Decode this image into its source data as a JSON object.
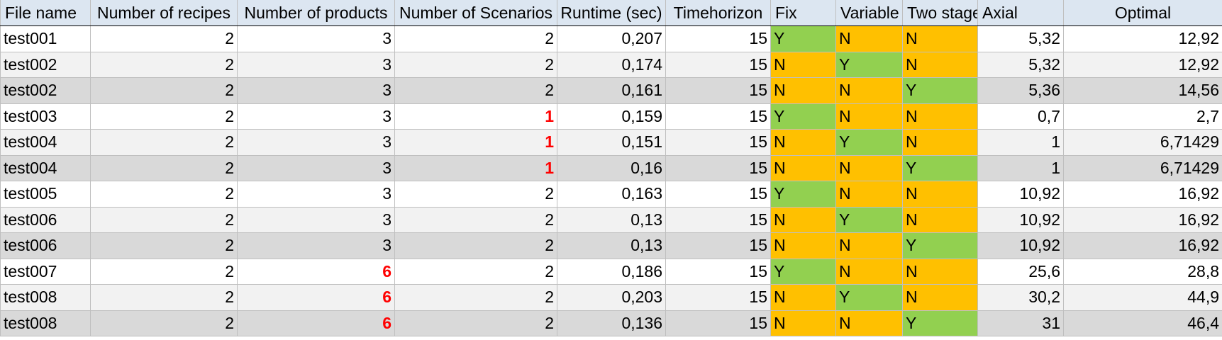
{
  "colors": {
    "header_bg": "#dce6f1",
    "yes_bg": "#92d050",
    "no_bg": "#ffc000",
    "highlight_text": "#ff0000",
    "row_shades": [
      "#ffffff",
      "#f2f2f2",
      "#d9d9d9"
    ]
  },
  "table": {
    "headers": [
      "File name",
      "Number of recipes",
      "Number of products",
      "Number of Scenarios",
      "Runtime (sec)",
      "Timehorizon",
      "Fix",
      "Variable",
      "Two stage",
      "Axial",
      "Optimal"
    ],
    "rows": [
      {
        "file": "test001",
        "recipes": "2",
        "products": "3",
        "scenarios": "2",
        "runtime": "0,207",
        "horizon": "15",
        "fix": "Y",
        "variable": "N",
        "twostage": "N",
        "axial": "5,32",
        "optimal": "12,92",
        "hl_products": false,
        "hl_scenarios": false,
        "shade": 0
      },
      {
        "file": "test002",
        "recipes": "2",
        "products": "3",
        "scenarios": "2",
        "runtime": "0,174",
        "horizon": "15",
        "fix": "N",
        "variable": "Y",
        "twostage": "N",
        "axial": "5,32",
        "optimal": "12,92",
        "hl_products": false,
        "hl_scenarios": false,
        "shade": 1
      },
      {
        "file": "test002",
        "recipes": "2",
        "products": "3",
        "scenarios": "2",
        "runtime": "0,161",
        "horizon": "15",
        "fix": "N",
        "variable": "N",
        "twostage": "Y",
        "axial": "5,36",
        "optimal": "14,56",
        "hl_products": false,
        "hl_scenarios": false,
        "shade": 2
      },
      {
        "file": "test003",
        "recipes": "2",
        "products": "3",
        "scenarios": "1",
        "runtime": "0,159",
        "horizon": "15",
        "fix": "Y",
        "variable": "N",
        "twostage": "N",
        "axial": "0,7",
        "optimal": "2,7",
        "hl_products": false,
        "hl_scenarios": true,
        "shade": 0
      },
      {
        "file": "test004",
        "recipes": "2",
        "products": "3",
        "scenarios": "1",
        "runtime": "0,151",
        "horizon": "15",
        "fix": "N",
        "variable": "Y",
        "twostage": "N",
        "axial": "1",
        "optimal": "6,71429",
        "hl_products": false,
        "hl_scenarios": true,
        "shade": 1
      },
      {
        "file": "test004",
        "recipes": "2",
        "products": "3",
        "scenarios": "1",
        "runtime": "0,16",
        "horizon": "15",
        "fix": "N",
        "variable": "N",
        "twostage": "Y",
        "axial": "1",
        "optimal": "6,71429",
        "hl_products": false,
        "hl_scenarios": true,
        "shade": 2
      },
      {
        "file": "test005",
        "recipes": "2",
        "products": "3",
        "scenarios": "2",
        "runtime": "0,163",
        "horizon": "15",
        "fix": "Y",
        "variable": "N",
        "twostage": "N",
        "axial": "10,92",
        "optimal": "16,92",
        "hl_products": false,
        "hl_scenarios": false,
        "shade": 0
      },
      {
        "file": "test006",
        "recipes": "2",
        "products": "3",
        "scenarios": "2",
        "runtime": "0,13",
        "horizon": "15",
        "fix": "N",
        "variable": "Y",
        "twostage": "N",
        "axial": "10,92",
        "optimal": "16,92",
        "hl_products": false,
        "hl_scenarios": false,
        "shade": 1
      },
      {
        "file": "test006",
        "recipes": "2",
        "products": "3",
        "scenarios": "2",
        "runtime": "0,13",
        "horizon": "15",
        "fix": "N",
        "variable": "N",
        "twostage": "Y",
        "axial": "10,92",
        "optimal": "16,92",
        "hl_products": false,
        "hl_scenarios": false,
        "shade": 2
      },
      {
        "file": "test007",
        "recipes": "2",
        "products": "6",
        "scenarios": "2",
        "runtime": "0,186",
        "horizon": "15",
        "fix": "Y",
        "variable": "N",
        "twostage": "N",
        "axial": "25,6",
        "optimal": "28,8",
        "hl_products": true,
        "hl_scenarios": false,
        "shade": 0
      },
      {
        "file": "test008",
        "recipes": "2",
        "products": "6",
        "scenarios": "2",
        "runtime": "0,203",
        "horizon": "15",
        "fix": "N",
        "variable": "Y",
        "twostage": "N",
        "axial": "30,2",
        "optimal": "44,9",
        "hl_products": true,
        "hl_scenarios": false,
        "shade": 1
      },
      {
        "file": "test008",
        "recipes": "2",
        "products": "6",
        "scenarios": "2",
        "runtime": "0,136",
        "horizon": "15",
        "fix": "N",
        "variable": "N",
        "twostage": "Y",
        "axial": "31",
        "optimal": "46,4",
        "hl_products": true,
        "hl_scenarios": false,
        "shade": 2
      }
    ]
  }
}
